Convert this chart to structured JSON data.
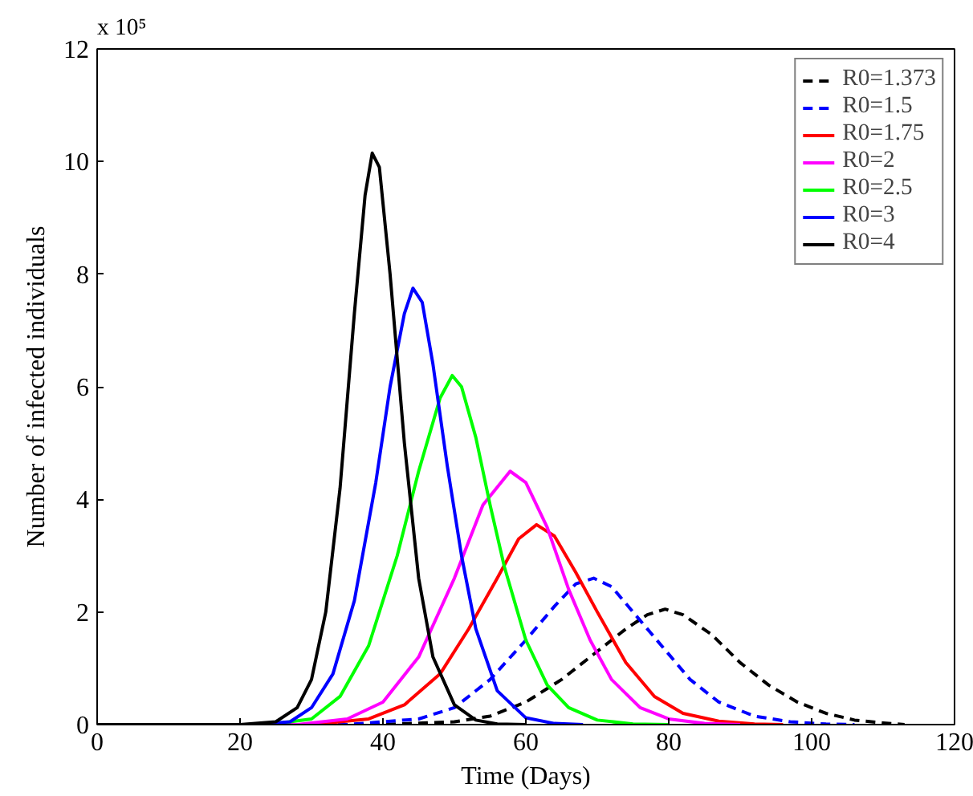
{
  "chart_data": {
    "type": "line",
    "xlabel": "Time (Days)",
    "ylabel": "Number of infected individuals",
    "annotations": [
      "x 10⁵"
    ],
    "xlim": [
      0,
      120
    ],
    "xticks": [
      0,
      20,
      40,
      60,
      80,
      100,
      120
    ],
    "ylim": [
      0,
      12
    ],
    "yticks": [
      0,
      2,
      4,
      6,
      8,
      10,
      12
    ],
    "grid": false,
    "legend": "top right",
    "series": [
      {
        "name": "R0=1.373",
        "color": "#000000",
        "line_style": "dashed",
        "x": [
          0,
          40,
          50,
          55,
          60,
          65,
          70,
          74,
          77,
          79.5,
          82,
          86,
          90,
          94,
          98,
          102,
          106,
          110,
          113
        ],
        "values": [
          0,
          0,
          0.05,
          0.15,
          0.4,
          0.8,
          1.3,
          1.7,
          1.95,
          2.05,
          1.95,
          1.6,
          1.1,
          0.7,
          0.4,
          0.2,
          0.08,
          0.03,
          0
        ]
      },
      {
        "name": "R0=1.5",
        "color": "#0000ff",
        "line_style": "dashed",
        "x": [
          0,
          35,
          45,
          50,
          55,
          60,
          64,
          67,
          69.5,
          72,
          75,
          79,
          83,
          87,
          92,
          97,
          102,
          106
        ],
        "values": [
          0,
          0,
          0.1,
          0.3,
          0.8,
          1.5,
          2.1,
          2.5,
          2.6,
          2.45,
          2.0,
          1.4,
          0.8,
          0.4,
          0.15,
          0.05,
          0.01,
          0
        ]
      },
      {
        "name": "R0=1.75",
        "color": "#ff0000",
        "line_style": "solid",
        "x": [
          0,
          30,
          38,
          43,
          48,
          52,
          56,
          59,
          61.5,
          64,
          67,
          70,
          74,
          78,
          82,
          87,
          92,
          96
        ],
        "values": [
          0,
          0,
          0.1,
          0.35,
          0.9,
          1.7,
          2.6,
          3.3,
          3.55,
          3.35,
          2.7,
          2.0,
          1.1,
          0.5,
          0.2,
          0.06,
          0.01,
          0
        ]
      },
      {
        "name": "R0=2",
        "color": "#ff00ff",
        "line_style": "solid",
        "x": [
          0,
          28,
          35,
          40,
          45,
          50,
          54,
          57.8,
          60,
          63,
          66,
          69,
          72,
          76,
          80,
          85,
          90
        ],
        "values": [
          0,
          0,
          0.1,
          0.4,
          1.2,
          2.6,
          3.9,
          4.5,
          4.3,
          3.5,
          2.4,
          1.5,
          0.8,
          0.3,
          0.1,
          0.02,
          0
        ]
      },
      {
        "name": "R0=2.5",
        "color": "#00ff00",
        "line_style": "solid",
        "x": [
          0,
          24,
          30,
          34,
          38,
          42,
          45,
          48,
          49.7,
          51,
          53,
          55,
          57,
          60,
          63,
          66,
          70,
          75,
          80
        ],
        "values": [
          0,
          0,
          0.1,
          0.5,
          1.4,
          3.0,
          4.5,
          5.8,
          6.2,
          6.0,
          5.1,
          3.9,
          2.8,
          1.5,
          0.7,
          0.3,
          0.08,
          0.01,
          0
        ]
      },
      {
        "name": "R0=3",
        "color": "#0000ff",
        "line_style": "solid",
        "x": [
          0,
          22,
          27,
          30,
          33,
          36,
          39,
          41,
          43,
          44.2,
          45.5,
          47,
          49,
          51,
          53,
          56,
          60,
          64,
          68
        ],
        "values": [
          0,
          0,
          0.05,
          0.3,
          0.9,
          2.2,
          4.3,
          6.0,
          7.3,
          7.75,
          7.5,
          6.4,
          4.6,
          3.0,
          1.7,
          0.6,
          0.12,
          0.02,
          0
        ]
      },
      {
        "name": "R0=4",
        "color": "#000000",
        "line_style": "solid",
        "x": [
          0,
          20,
          25,
          28,
          30,
          32,
          34,
          36,
          37.5,
          38.5,
          39.5,
          41,
          43,
          45,
          47,
          50,
          53,
          56,
          60
        ],
        "values": [
          0,
          0,
          0.05,
          0.3,
          0.8,
          2.0,
          4.2,
          7.3,
          9.4,
          10.15,
          9.9,
          8.0,
          5.0,
          2.6,
          1.2,
          0.35,
          0.08,
          0.01,
          0
        ]
      }
    ]
  }
}
